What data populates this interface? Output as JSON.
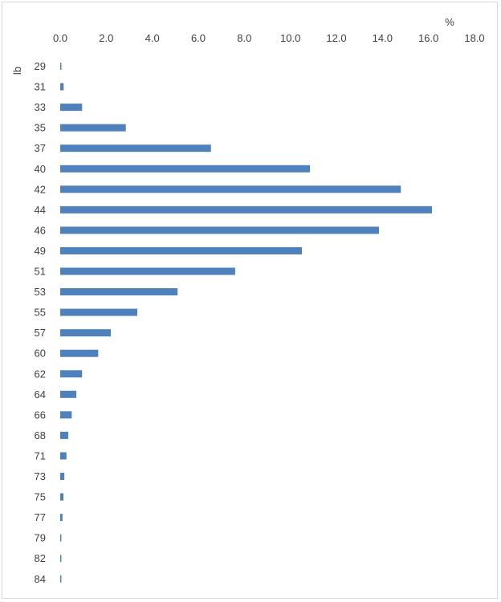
{
  "chart_data": {
    "type": "bar",
    "orientation": "horizontal",
    "x_unit": "%",
    "y_unit": "lb",
    "xlim": [
      0,
      18
    ],
    "x_ticks": [
      0,
      2,
      4,
      6,
      8,
      10,
      12,
      14,
      16,
      18
    ],
    "x_tick_labels": [
      "0.0",
      "2.0",
      "4.0",
      "6.0",
      "8.0",
      "10.0",
      "12.0",
      "14.0",
      "16.0",
      "18.0"
    ],
    "x_axis_position": "top",
    "grid": false,
    "bar_color": "#4f81bd",
    "categories": [
      "29",
      "31",
      "33",
      "35",
      "37",
      "40",
      "42",
      "44",
      "46",
      "49",
      "51",
      "53",
      "55",
      "57",
      "60",
      "62",
      "64",
      "66",
      "68",
      "71",
      "73",
      "75",
      "77",
      "79",
      "82",
      "84"
    ],
    "values": [
      0.05,
      0.15,
      0.95,
      2.85,
      6.55,
      10.85,
      14.8,
      16.15,
      13.85,
      10.5,
      7.6,
      5.1,
      3.35,
      2.2,
      1.65,
      0.95,
      0.7,
      0.5,
      0.35,
      0.27,
      0.18,
      0.14,
      0.1,
      0.05,
      0.05,
      0.05
    ]
  }
}
